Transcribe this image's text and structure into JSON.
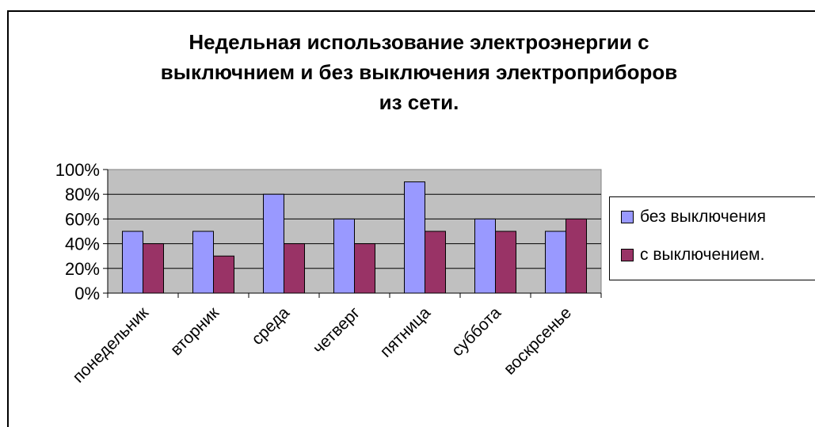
{
  "chart_data": {
    "type": "bar",
    "title_lines": [
      "Недельная использование электроэнергии с",
      "выключнием и без выключения электроприборов",
      "из сети."
    ],
    "categories": [
      "понедельник",
      "вторник",
      "среда",
      "четверг",
      "пятница",
      "суббота",
      "воскрсенье"
    ],
    "series": [
      {
        "name": "без выключения",
        "color": "#9999ff",
        "values": [
          50,
          50,
          80,
          60,
          90,
          60,
          50
        ]
      },
      {
        "name": "с выключением.",
        "color": "#993366",
        "values": [
          40,
          30,
          40,
          40,
          50,
          50,
          60
        ]
      }
    ],
    "y_ticks": [
      "0%",
      "20%",
      "40%",
      "60%",
      "80%",
      "100%"
    ],
    "ylim": [
      0,
      100
    ],
    "plot_background": "#c0c0c0",
    "grid": true,
    "legend_position": "right"
  }
}
